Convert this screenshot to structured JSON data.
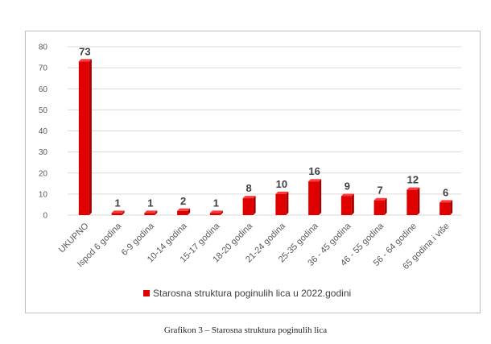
{
  "chart_data": {
    "type": "bar",
    "title": "",
    "xlabel": "",
    "ylabel": "",
    "ylim": [
      0,
      80
    ],
    "yticks": [
      0,
      10,
      20,
      30,
      40,
      50,
      60,
      70,
      80
    ],
    "grid": true,
    "legend_position": "bottom",
    "bar_color": "#e00000",
    "bar_shade_color": "#a80000",
    "categories": [
      "UKUPNO",
      "Ispod 6 godina",
      "6-9 godina",
      "10-14 godina",
      "15-17 godina",
      "18-20 godina",
      "21-24 godina",
      "25-35 godina",
      "36 - 45 godina",
      "46 - 55 godina",
      "56 - 64 godine",
      "65 godina i više"
    ],
    "series": [
      {
        "name": "Starosna struktura poginulih lica u 2022.godini",
        "values": [
          73,
          1,
          1,
          2,
          1,
          8,
          10,
          16,
          9,
          7,
          12,
          6
        ]
      }
    ]
  },
  "caption": "Grafikon 3 – Starosna struktura poginulih lica"
}
